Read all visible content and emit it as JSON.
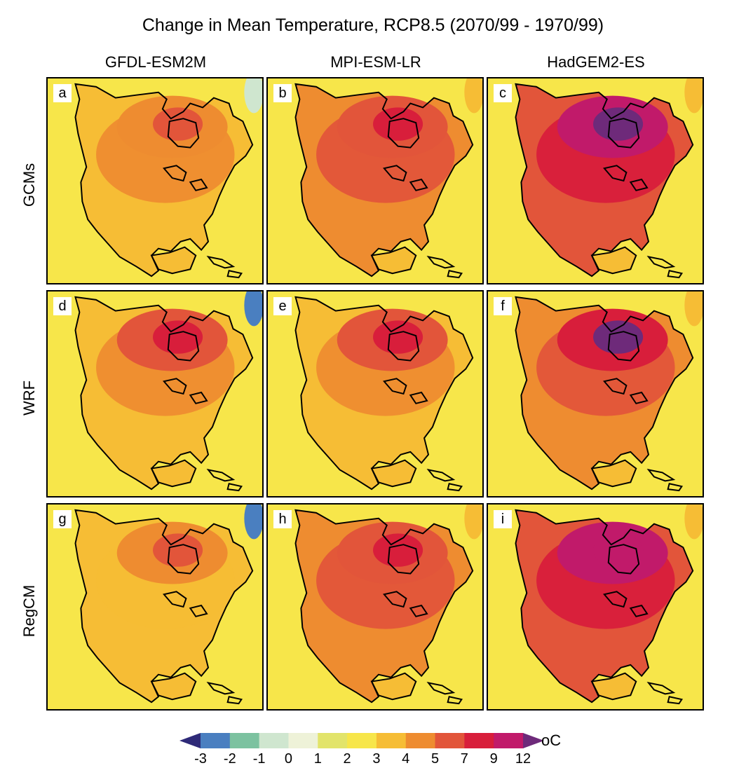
{
  "title": "Change in Mean Temperature, RCP8.5 (2070/99 - 1970/99)",
  "columns": [
    "GFDL-ESM2M",
    "MPI-ESM-LR",
    "HadGEM2-ES"
  ],
  "rows": [
    "GCMs",
    "WRF",
    "RegCM"
  ],
  "panel_labels": [
    "a",
    "b",
    "c",
    "d",
    "e",
    "f",
    "g",
    "h",
    "i"
  ],
  "colorbar": {
    "ticks": [
      "-3",
      "-2",
      "-1",
      "0",
      "1",
      "2",
      "3",
      "4",
      "5",
      "7",
      "9",
      "12"
    ],
    "unit": "oC",
    "colors": [
      "#2e2a78",
      "#4a7fc0",
      "#7cc2a0",
      "#cfe6cf",
      "#eef2d8",
      "#e2e46a",
      "#f7e64a",
      "#f6bd35",
      "#ee8c30",
      "#e2553a",
      "#d81e3b",
      "#c11a6a",
      "#6e2a7a"
    ]
  },
  "panel_palettes": [
    {
      "base": "#f6bd35",
      "mid": "#ee8c30",
      "hot": "#ee8c30",
      "peak": "#e2553a",
      "cool": "#cfe6cf"
    },
    {
      "base": "#ee8c30",
      "mid": "#e2553a",
      "hot": "#e2553a",
      "peak": "#d81e3b",
      "cool": "#f6bd35"
    },
    {
      "base": "#e2553a",
      "mid": "#d81e3b",
      "hot": "#c11a6a",
      "peak": "#6e2a7a",
      "cool": "#f6bd35"
    },
    {
      "base": "#f6bd35",
      "mid": "#ee8c30",
      "hot": "#e2553a",
      "peak": "#d81e3b",
      "cool": "#4a7fc0"
    },
    {
      "base": "#f6bd35",
      "mid": "#ee8c30",
      "hot": "#e2553a",
      "peak": "#d81e3b",
      "cool": "#f7e64a"
    },
    {
      "base": "#ee8c30",
      "mid": "#e2553a",
      "hot": "#d81e3b",
      "peak": "#6e2a7a",
      "cool": "#f6bd35"
    },
    {
      "base": "#f6bd35",
      "mid": "#f6bd35",
      "hot": "#ee8c30",
      "peak": "#e2553a",
      "cool": "#4a7fc0"
    },
    {
      "base": "#ee8c30",
      "mid": "#e2553a",
      "hot": "#e2553a",
      "peak": "#d81e3b",
      "cool": "#f6bd35"
    },
    {
      "base": "#e2553a",
      "mid": "#d81e3b",
      "hot": "#c11a6a",
      "peak": "#c11a6a",
      "cool": "#f6bd35"
    }
  ]
}
